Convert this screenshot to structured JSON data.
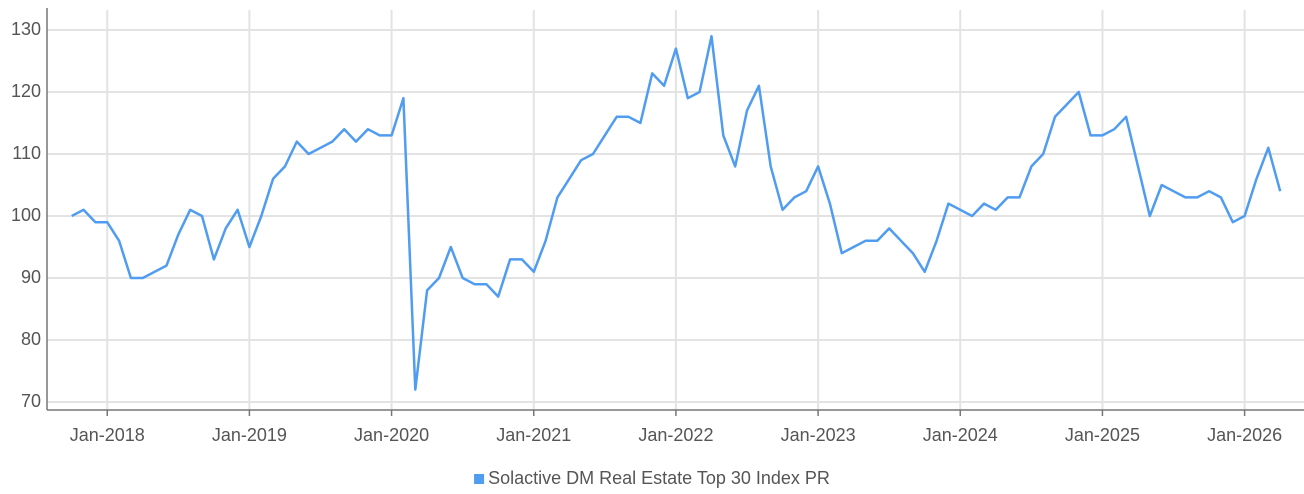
{
  "chart_data": {
    "type": "line",
    "x": [
      "2017-10",
      "2017-11",
      "2017-12",
      "2018-01",
      "2018-02",
      "2018-03",
      "2018-04",
      "2018-05",
      "2018-06",
      "2018-07",
      "2018-08",
      "2018-09",
      "2018-10",
      "2018-11",
      "2018-12",
      "2019-01",
      "2019-02",
      "2019-03",
      "2019-04",
      "2019-05",
      "2019-06",
      "2019-07",
      "2019-08",
      "2019-09",
      "2019-10",
      "2019-11",
      "2019-12",
      "2020-01",
      "2020-02",
      "2020-03",
      "2020-04",
      "2020-05",
      "2020-06",
      "2020-07",
      "2020-08",
      "2020-09",
      "2020-10",
      "2020-11",
      "2020-12",
      "2021-01",
      "2021-02",
      "2021-03",
      "2021-04",
      "2021-05",
      "2021-06",
      "2021-07",
      "2021-08",
      "2021-09",
      "2021-10",
      "2021-11",
      "2021-12",
      "2022-01",
      "2022-02",
      "2022-03",
      "2022-04",
      "2022-05",
      "2022-06",
      "2022-07",
      "2022-08",
      "2022-09",
      "2022-10",
      "2022-11",
      "2022-12",
      "2023-01",
      "2023-02",
      "2023-03",
      "2023-04",
      "2023-05",
      "2023-06",
      "2023-07",
      "2023-08",
      "2023-09",
      "2023-10",
      "2023-11",
      "2023-12",
      "2024-01",
      "2024-02",
      "2024-03",
      "2024-04",
      "2024-05",
      "2024-06",
      "2024-07",
      "2024-08",
      "2024-09",
      "2024-10",
      "2024-11",
      "2024-12",
      "2025-01",
      "2025-02",
      "2025-03",
      "2025-04",
      "2025-05",
      "2025-06",
      "2025-07",
      "2025-08",
      "2025-09",
      "2025-10",
      "2025-11",
      "2025-12",
      "2026-01",
      "2026-02",
      "2026-03",
      "2026-04"
    ],
    "series": [
      {
        "name": "Solactive DM Real Estate Top 30 Index PR",
        "color": "#4f9cf0",
        "values": [
          100,
          101,
          99,
          99,
          96,
          90,
          90,
          91,
          92,
          97,
          101,
          100,
          93,
          98,
          101,
          95,
          100,
          106,
          108,
          112,
          110,
          111,
          112,
          114,
          112,
          114,
          113,
          113,
          119,
          72,
          88,
          90,
          95,
          90,
          89,
          89,
          87,
          93,
          93,
          91,
          96,
          103,
          106,
          109,
          110,
          113,
          116,
          116,
          115,
          123,
          121,
          127,
          119,
          120,
          129,
          113,
          108,
          117,
          121,
          108,
          101,
          103,
          104,
          108,
          102,
          94,
          95,
          96,
          96,
          98,
          96,
          94,
          91,
          96,
          102,
          101,
          100,
          102,
          101,
          103,
          103,
          108,
          110,
          116,
          118,
          120,
          113,
          113,
          114,
          116,
          108,
          100,
          105,
          104,
          103,
          103,
          104,
          103,
          99,
          100,
          106,
          111,
          104
        ]
      }
    ],
    "xlim": [
      "2017-08",
      "2026-05"
    ],
    "xticks": [
      {
        "value": "2018-01",
        "label": "Jan-2018"
      },
      {
        "value": "2019-01",
        "label": "Jan-2019"
      },
      {
        "value": "2020-01",
        "label": "Jan-2020"
      },
      {
        "value": "2021-01",
        "label": "Jan-2021"
      },
      {
        "value": "2022-01",
        "label": "Jan-2022"
      },
      {
        "value": "2023-01",
        "label": "Jan-2023"
      },
      {
        "value": "2024-01",
        "label": "Jan-2024"
      },
      {
        "value": "2025-01",
        "label": "Jan-2025"
      },
      {
        "value": "2026-01",
        "label": "Jan-2026"
      }
    ],
    "ylim": [
      70,
      130
    ],
    "yticks": [
      70,
      80,
      90,
      100,
      110,
      120,
      130
    ],
    "grid": true,
    "legend": "bottom"
  }
}
